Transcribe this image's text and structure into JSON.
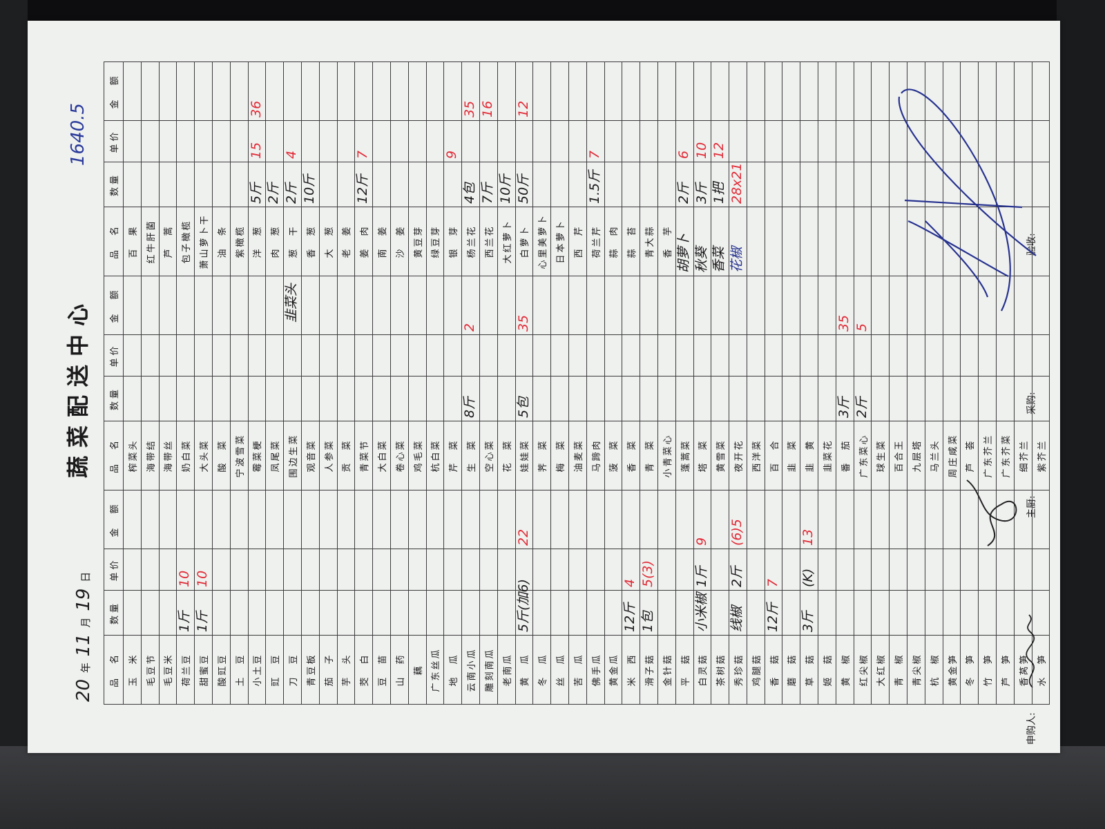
{
  "form": {
    "title": "蔬菜配送中心",
    "date": {
      "year_prefix": "20",
      "year_label": "年",
      "month": "11",
      "month_label": "月",
      "day": "19",
      "day_label": "日"
    },
    "total_note": "1640.5",
    "headers": [
      "品　名",
      "数量",
      "单价",
      "金　额"
    ],
    "groups": [
      {
        "items": [
          "玉　米",
          "毛豆节",
          "毛豆米",
          "荷兰豆",
          "甜蜜豆",
          "酸豇豆",
          "土　豆",
          "小土豆",
          "豇　豆",
          "刀　豆",
          "青豆板",
          "茄　子",
          "芋　头",
          "茭　白",
          "豆　苗",
          "山　药",
          "藕",
          "广东丝瓜",
          "地　瓜",
          "云南小瓜",
          "雕刻南瓜",
          "老南瓜",
          "黄　瓜",
          "冬　瓜",
          "丝　瓜",
          "苦　瓜",
          "佛手瓜",
          "黄金瓜",
          "米　西",
          "滑子菇",
          "金针菇",
          "平　菇",
          "白灵菇",
          "茶树菇",
          "秀珍菇",
          "鸡腿菇",
          "香　菇",
          "蘑　菇",
          "草　菇",
          "姬　菇",
          "黄　椒",
          "红尖椒",
          "大红椒",
          "青　椒",
          "青尖椒",
          "杭　椒",
          "黄金笋",
          "冬　笋",
          "竹　笋",
          "芦　笋",
          "香莴笋",
          "水　笋"
        ]
      },
      {
        "items": [
          "榨菜头",
          "海带结",
          "海带丝",
          "奶白菜",
          "大头菜",
          "酸　菜",
          "宁波雪菜",
          "霉菜梗",
          "凤尾菜",
          "围边生菜",
          "观音菜",
          "人参菜",
          "贡　菜",
          "青菜节",
          "大白菜",
          "卷心菜",
          "鸡毛菜",
          "杭白菜",
          "芹　菜",
          "生　菜",
          "空心菜",
          "花　菜",
          "娃娃菜",
          "荠　菜",
          "梅　菜",
          "油麦菜",
          "马蹄肉",
          "菠　菜",
          "香　菜",
          "青　菜",
          "小青菜心",
          "蓬蒿菜",
          "塔　菜",
          "黄雪菜",
          "夜开花",
          "西洋菜",
          "百　合",
          "韭　菜",
          "韭　黄",
          "韭菜花",
          "番　茄",
          "广东菜心",
          "球生菜",
          "百合王",
          "九层塔",
          "马兰头",
          "周庄咸菜",
          "芦　荟",
          "广东芥兰",
          "广东芥菜",
          "细芥兰",
          "紫芥兰"
        ]
      },
      {
        "items": [
          "百　果",
          "红牛肝菌",
          "芦　蒿",
          "包子橄榄",
          "萧山萝卜干",
          "油　条",
          "紫橄榄",
          "洋　葱",
          "肉　葱",
          "葱　干",
          "香　葱",
          "大　葱",
          "老　姜",
          "姜　肉",
          "南　姜",
          "沙　姜",
          "黄豆芽",
          "绿豆芽",
          "银　芽",
          "杨兰花",
          "西兰花",
          "大红萝卜",
          "白萝卜",
          "心里美萝卜",
          "日本萝卜",
          "西　芹",
          "荷兰芹",
          "蒜　肉",
          "蒜　苔",
          "青大蒜",
          "香　芋"
        ]
      }
    ],
    "handwritten": [
      {
        "group": 0,
        "row": 3,
        "field": "qty",
        "text": "1斤",
        "ink": "black"
      },
      {
        "group": 0,
        "row": 3,
        "field": "price",
        "text": "10",
        "ink": "red"
      },
      {
        "group": 0,
        "row": 4,
        "field": "qty",
        "text": "1斤",
        "ink": "black"
      },
      {
        "group": 0,
        "row": 4,
        "field": "price",
        "text": "10",
        "ink": "red"
      },
      {
        "group": 0,
        "row": 22,
        "field": "qty",
        "text": "5斤(加6)",
        "ink": "black"
      },
      {
        "group": 0,
        "row": 22,
        "field": "amount",
        "text": "22",
        "ink": "red"
      },
      {
        "group": 0,
        "row": 28,
        "field": "qty",
        "text": "12斤",
        "ink": "black"
      },
      {
        "group": 0,
        "row": 28,
        "field": "price",
        "text": "4",
        "ink": "red"
      },
      {
        "group": 0,
        "row": 29,
        "field": "qty",
        "text": "1包",
        "ink": "black"
      },
      {
        "group": 0,
        "row": 29,
        "field": "price",
        "text": "5(3)",
        "ink": "red"
      },
      {
        "group": 0,
        "row": 32,
        "field": "qty",
        "text": "小米椒",
        "ink": "black"
      },
      {
        "group": 0,
        "row": 32,
        "field": "price",
        "text": "1斤",
        "ink": "black"
      },
      {
        "group": 0,
        "row": 32,
        "field": "amount",
        "text": "9",
        "ink": "red"
      },
      {
        "group": 0,
        "row": 34,
        "field": "qty",
        "text": "线椒",
        "ink": "black"
      },
      {
        "group": 0,
        "row": 34,
        "field": "price",
        "text": "2斤",
        "ink": "black"
      },
      {
        "group": 0,
        "row": 34,
        "field": "amount",
        "text": "(6)5",
        "ink": "red"
      },
      {
        "group": 0,
        "row": 36,
        "field": "qty",
        "text": "12斤",
        "ink": "black"
      },
      {
        "group": 0,
        "row": 36,
        "field": "price",
        "text": "7",
        "ink": "red"
      },
      {
        "group": 0,
        "row": 38,
        "field": "qty",
        "text": "3斤",
        "ink": "black"
      },
      {
        "group": 0,
        "row": 38,
        "field": "price",
        "text": "(K)",
        "ink": "black"
      },
      {
        "group": 0,
        "row": 38,
        "field": "amount",
        "text": "13",
        "ink": "red"
      },
      {
        "group": 1,
        "row": 19,
        "field": "qty",
        "text": "8斤",
        "ink": "black"
      },
      {
        "group": 1,
        "row": 19,
        "field": "amount",
        "text": "2",
        "ink": "red"
      },
      {
        "group": 1,
        "row": 22,
        "field": "qty",
        "text": "5包",
        "ink": "black"
      },
      {
        "group": 1,
        "row": 22,
        "field": "amount",
        "text": "35",
        "ink": "red"
      },
      {
        "group": 1,
        "row": 40,
        "field": "qty",
        "text": "3斤",
        "ink": "black"
      },
      {
        "group": 1,
        "row": 40,
        "field": "amount",
        "text": "35",
        "ink": "red"
      },
      {
        "group": 1,
        "row": 41,
        "field": "qty",
        "text": "2斤",
        "ink": "black"
      },
      {
        "group": 1,
        "row": 41,
        "field": "amount",
        "text": "5",
        "ink": "red"
      },
      {
        "group": 2,
        "row": 7,
        "field": "qty",
        "text": "5斤",
        "ink": "black"
      },
      {
        "group": 2,
        "row": 7,
        "field": "price",
        "text": "15",
        "ink": "red"
      },
      {
        "group": 2,
        "row": 7,
        "field": "amount",
        "text": "36",
        "ink": "red"
      },
      {
        "group": 2,
        "row": 8,
        "field": "qty",
        "text": "2斤",
        "ink": "black"
      },
      {
        "group": 2,
        "row": 9,
        "field": "name_note",
        "text": "韭菜头",
        "ink": "black"
      },
      {
        "group": 2,
        "row": 9,
        "field": "qty",
        "text": "2斤",
        "ink": "black"
      },
      {
        "group": 2,
        "row": 9,
        "field": "price",
        "text": "4",
        "ink": "red"
      },
      {
        "group": 2,
        "row": 10,
        "field": "qty",
        "text": "10斤",
        "ink": "black"
      },
      {
        "group": 2,
        "row": 13,
        "field": "qty",
        "text": "12斤",
        "ink": "black"
      },
      {
        "group": 2,
        "row": 13,
        "field": "price",
        "text": "7",
        "ink": "red"
      },
      {
        "group": 2,
        "row": 18,
        "field": "price",
        "text": "9",
        "ink": "red"
      },
      {
        "group": 2,
        "row": 19,
        "field": "qty",
        "text": "4包",
        "ink": "black"
      },
      {
        "group": 2,
        "row": 19,
        "field": "amount",
        "text": "35",
        "ink": "red"
      },
      {
        "group": 2,
        "row": 20,
        "field": "qty",
        "text": "7斤",
        "ink": "black"
      },
      {
        "group": 2,
        "row": 20,
        "field": "amount",
        "text": "16",
        "ink": "red"
      },
      {
        "group": 2,
        "row": 21,
        "field": "qty",
        "text": "10斤",
        "ink": "black"
      },
      {
        "group": 2,
        "row": 22,
        "field": "qty",
        "text": "50斤",
        "ink": "black"
      },
      {
        "group": 2,
        "row": 22,
        "field": "amount",
        "text": "12",
        "ink": "red"
      },
      {
        "group": 2,
        "row": 26,
        "field": "qty",
        "text": "1.5斤",
        "ink": "black"
      },
      {
        "group": 2,
        "row": 26,
        "field": "price",
        "text": "7",
        "ink": "red"
      },
      {
        "group": 2,
        "row": 31,
        "field": "name",
        "text": "胡萝卜",
        "ink": "black"
      },
      {
        "group": 2,
        "row": 31,
        "field": "qty",
        "text": "2斤",
        "ink": "black"
      },
      {
        "group": 2,
        "row": 31,
        "field": "price",
        "text": "6",
        "ink": "red"
      },
      {
        "group": 2,
        "row": 32,
        "field": "name",
        "text": "秋葵",
        "ink": "black"
      },
      {
        "group": 2,
        "row": 32,
        "field": "qty",
        "text": "3斤",
        "ink": "black"
      },
      {
        "group": 2,
        "row": 32,
        "field": "price",
        "text": "10",
        "ink": "red"
      },
      {
        "group": 2,
        "row": 33,
        "field": "name",
        "text": "香菜",
        "ink": "black"
      },
      {
        "group": 2,
        "row": 33,
        "field": "qty",
        "text": "1把",
        "ink": "black"
      },
      {
        "group": 2,
        "row": 33,
        "field": "price",
        "text": "12",
        "ink": "red"
      },
      {
        "group": 2,
        "row": 34,
        "field": "name",
        "text": "花椒",
        "ink": "blue"
      },
      {
        "group": 2,
        "row": 34,
        "field": "qty",
        "text": "28x21",
        "ink": "red"
      }
    ],
    "footer": {
      "requester": "申购人:",
      "chef": "主厨:",
      "purchaser": "采购:",
      "inspector": "验收:"
    },
    "ink_colors": {
      "black": "#1a1a1a",
      "red": "#e02a36",
      "blue": "#27328f"
    }
  }
}
